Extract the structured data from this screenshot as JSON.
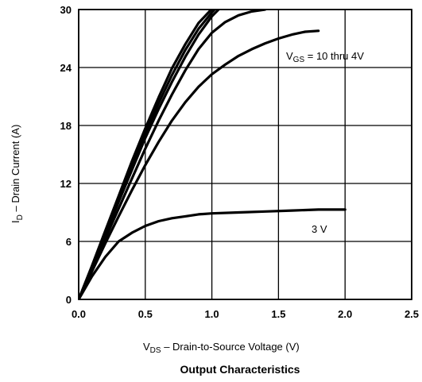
{
  "chart_data": {
    "type": "line",
    "title": "",
    "caption": "Output Characteristics",
    "xlabel": {
      "symbol": "V",
      "subscript": "DS",
      "text": " –  Drain-to-Source Voltage (V)"
    },
    "ylabel": {
      "symbol": "I",
      "subscript": "D",
      "text": " –  Drain Current (A)"
    },
    "xlim": [
      0,
      2.5
    ],
    "ylim": [
      0,
      30
    ],
    "xticks": [
      "0.0",
      "0.5",
      "1.0",
      "1.5",
      "2.0",
      "2.5"
    ],
    "yticks": [
      "0",
      "6",
      "12",
      "18",
      "24",
      "30"
    ],
    "grid": true,
    "annotations": [
      {
        "main": "V",
        "sub": "GS",
        "rest": " = 10 thru 4V"
      },
      {
        "main": "3 V",
        "sub": "",
        "rest": ""
      }
    ],
    "series": [
      {
        "x": [
          0,
          0.1,
          0.2,
          0.3,
          0.4,
          0.5,
          0.6,
          0.7,
          0.8,
          0.9,
          0.995
        ],
        "y": [
          0,
          3.5,
          7.1,
          10.7,
          14.3,
          17.7,
          20.9,
          23.9,
          26.4,
          28.6,
          30
        ]
      },
      {
        "x": [
          0,
          0.1,
          0.2,
          0.3,
          0.4,
          0.5,
          0.6,
          0.7,
          0.8,
          0.9,
          1.0,
          1.02
        ],
        "y": [
          0,
          3.4,
          6.9,
          10.4,
          13.9,
          17.2,
          20.3,
          23.2,
          25.8,
          28.0,
          29.7,
          30
        ]
      },
      {
        "x": [
          0,
          0.1,
          0.2,
          0.3,
          0.4,
          0.5,
          0.6,
          0.7,
          0.8,
          0.9,
          1.0,
          1.05
        ],
        "y": [
          0,
          3.3,
          6.7,
          10.1,
          13.4,
          16.7,
          19.7,
          22.5,
          25.1,
          27.4,
          29.3,
          30
        ]
      },
      {
        "x": [
          0,
          0.1,
          0.2,
          0.3,
          0.4,
          0.5,
          0.6,
          0.7,
          0.8,
          0.9,
          1.0,
          1.1,
          1.2,
          1.3,
          1.4
        ],
        "y": [
          0,
          3.1,
          6.3,
          9.4,
          12.5,
          15.6,
          18.5,
          21.2,
          23.7,
          25.9,
          27.6,
          28.7,
          29.4,
          29.8,
          30
        ]
      },
      {
        "x": [
          0,
          0.1,
          0.2,
          0.3,
          0.4,
          0.5,
          0.6,
          0.7,
          0.8,
          0.9,
          1.0,
          1.1,
          1.2,
          1.3,
          1.4,
          1.5,
          1.6,
          1.7,
          1.8
        ],
        "y": [
          0,
          2.9,
          5.8,
          8.6,
          11.3,
          13.9,
          16.3,
          18.5,
          20.4,
          22.0,
          23.3,
          24.3,
          25.2,
          25.9,
          26.5,
          27.0,
          27.4,
          27.7,
          27.8
        ]
      },
      {
        "x": [
          0,
          0.1,
          0.2,
          0.3,
          0.4,
          0.5,
          0.6,
          0.7,
          0.8,
          0.9,
          1.0,
          1.2,
          1.4,
          1.6,
          1.8,
          2.0
        ],
        "y": [
          0,
          2.4,
          4.4,
          6.0,
          6.9,
          7.6,
          8.1,
          8.4,
          8.6,
          8.8,
          8.9,
          9.0,
          9.1,
          9.2,
          9.3,
          9.3
        ]
      }
    ]
  }
}
